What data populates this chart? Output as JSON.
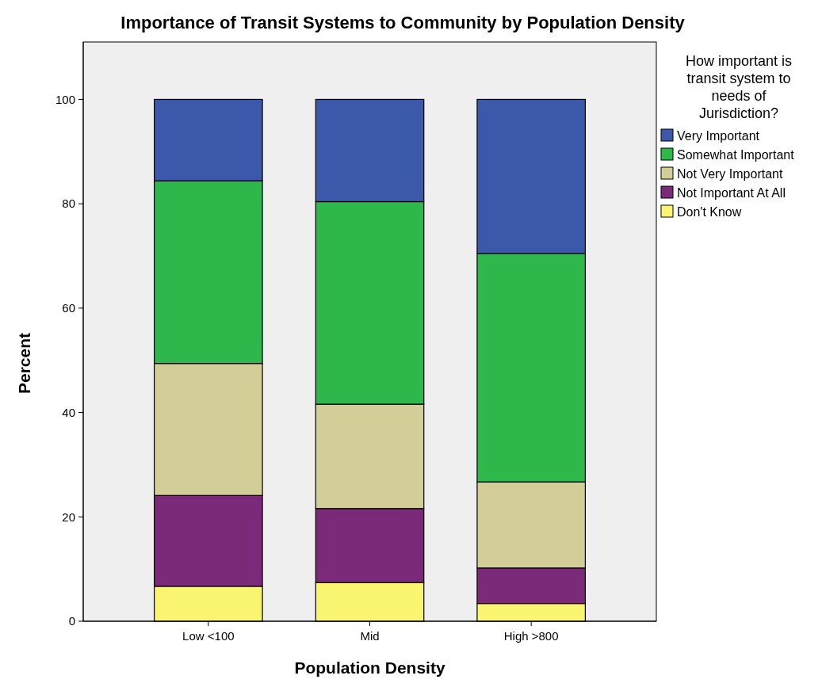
{
  "chart_data": {
    "type": "bar",
    "title": "Importance of Transit Systems to Community by Population Density",
    "xlabel": "Population Density",
    "ylabel": "Percent",
    "legend_title": "How important is transit system to needs of Jurisdiction?",
    "categories": [
      "Low <100",
      "Mid",
      "High >800"
    ],
    "stacked": true,
    "series": [
      {
        "name": "Don't Know",
        "color": "#f9f571",
        "values": [
          6.7,
          7.4,
          3.4
        ]
      },
      {
        "name": "Not Important At All",
        "color": "#7b2a7a",
        "values": [
          17.4,
          14.2,
          6.8
        ]
      },
      {
        "name": "Not Very Important",
        "color": "#d3cd97",
        "values": [
          25.3,
          20.0,
          16.5
        ]
      },
      {
        "name": "Somewhat Important",
        "color": "#2eb74a",
        "values": [
          35.0,
          38.8,
          43.8
        ]
      },
      {
        "name": "Very Important",
        "color": "#3c58ab",
        "values": [
          15.6,
          19.6,
          29.5
        ]
      }
    ],
    "ylim": [
      0,
      111
    ],
    "yticks": [
      0,
      20,
      40,
      60,
      80,
      100
    ],
    "legend": "top right"
  }
}
